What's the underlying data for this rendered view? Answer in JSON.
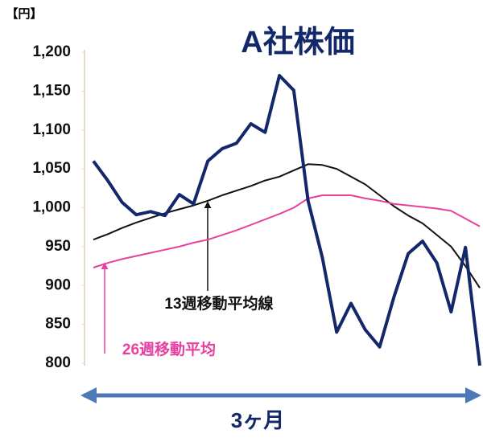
{
  "chart_data": {
    "type": "line",
    "title": "A社株価",
    "y_unit": "【円】",
    "categories": [
      null,
      null,
      null,
      null,
      null,
      null,
      null,
      null,
      null,
      null,
      null,
      null,
      null,
      null,
      null,
      null,
      null,
      null,
      null,
      null,
      null,
      null,
      null,
      null,
      null,
      null,
      null,
      null
    ],
    "ylim": [
      800,
      1200
    ],
    "yticks": [
      800,
      850,
      900,
      950,
      {
        "value": 1000,
        "label": "1,000"
      },
      {
        "value": 1050,
        "label": "1,050"
      },
      {
        "value": 1100,
        "label": "1,100"
      },
      {
        "value": 1150,
        "label": "1,150"
      },
      {
        "value": 1200,
        "label": "1,200"
      }
    ],
    "grid": false,
    "series": [
      {
        "color": "#13286a",
        "values": [
          1060,
          1035,
          1007,
          991,
          995,
          990,
          1017,
          1005,
          1060,
          1076,
          1083,
          1108,
          1097,
          1170,
          1151,
          1009,
          936,
          840,
          877,
          843,
          821,
          885,
          941,
          957,
          929,
          866,
          949,
          797
        ]
      },
      {
        "name": "13週移動平均線",
        "color": "#111111",
        "values": [
          959,
          966,
          974,
          981,
          987,
          993,
          998,
          1003,
          1009,
          1016,
          1022,
          1028,
          1035,
          1040,
          1048,
          1056,
          1055,
          1050,
          1040,
          1030,
          1016,
          1002,
          990,
          980,
          965,
          950,
          925,
          897
        ]
      },
      {
        "name": "26週移動平均",
        "color": "#e8409f",
        "values": [
          923,
          929,
          934,
          938,
          942,
          946,
          950,
          955,
          959,
          965,
          971,
          978,
          985,
          992,
          1000,
          1012,
          1016,
          1016,
          1016,
          1012,
          1009,
          1005,
          1003,
          1001,
          999,
          996,
          986,
          976
        ]
      }
    ],
    "period_label": "3ヶ月"
  }
}
